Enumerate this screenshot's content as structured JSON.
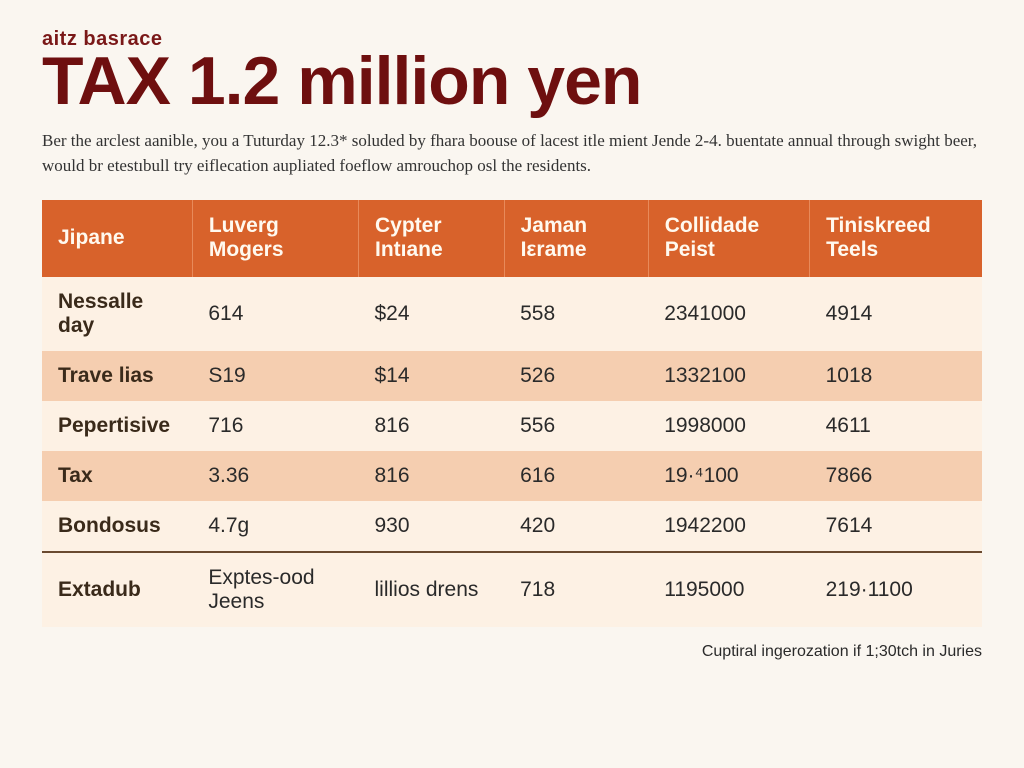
{
  "kicker": "aitz basrace",
  "headline_tax": "TAX",
  "headline_rest": " 1.2 million yen",
  "lede": "Ber the arclest aanible, you a Tuturday 12.3* soluded by fhara boouse of lacest itle mient Jende 2-4. buentate annual through swight beer, would br etestıbull try eiflecation aupliated foeflow amrouchop osl the residents.",
  "table": {
    "type": "table",
    "header_bg": "#d8622b",
    "header_fg": "#fff9ef",
    "row_odd_bg": "#fdf1e4",
    "row_even_bg": "#f5ceb0",
    "divider_color": "#6a4a30",
    "font_family": "Arial",
    "header_fontsize": 21,
    "cell_fontsize": 21,
    "columns": [
      "Jipane",
      "Luverg Mogers",
      "Cypter Intıane",
      "Jaman Iεrame",
      "Collidade Peist",
      "Tiniskreed Teels"
    ],
    "rows": [
      [
        "Nessalle day",
        "614",
        "$24",
        "558",
        "2341000",
        "4914"
      ],
      [
        "Trave lias",
        "S19",
        "$14",
        "526",
        "1332100",
        "1018"
      ],
      [
        "Pepertisive",
        "716",
        "816",
        "556",
        "1998000",
        "4611"
      ],
      [
        "Tax",
        "3.36",
        "816",
        "616",
        "19·⁴100",
        "7866"
      ],
      [
        "Bondosus",
        "4.7g",
        "930",
        "420",
        "1942200",
        "7614"
      ]
    ],
    "summary_row": [
      "Extadub",
      "Exptes-ood Jeens",
      "lillios drens",
      "718",
      "1195000",
      "219·1100"
    ]
  },
  "footnote": "Cuptiral ingerozation if 1;30tch in Juries"
}
